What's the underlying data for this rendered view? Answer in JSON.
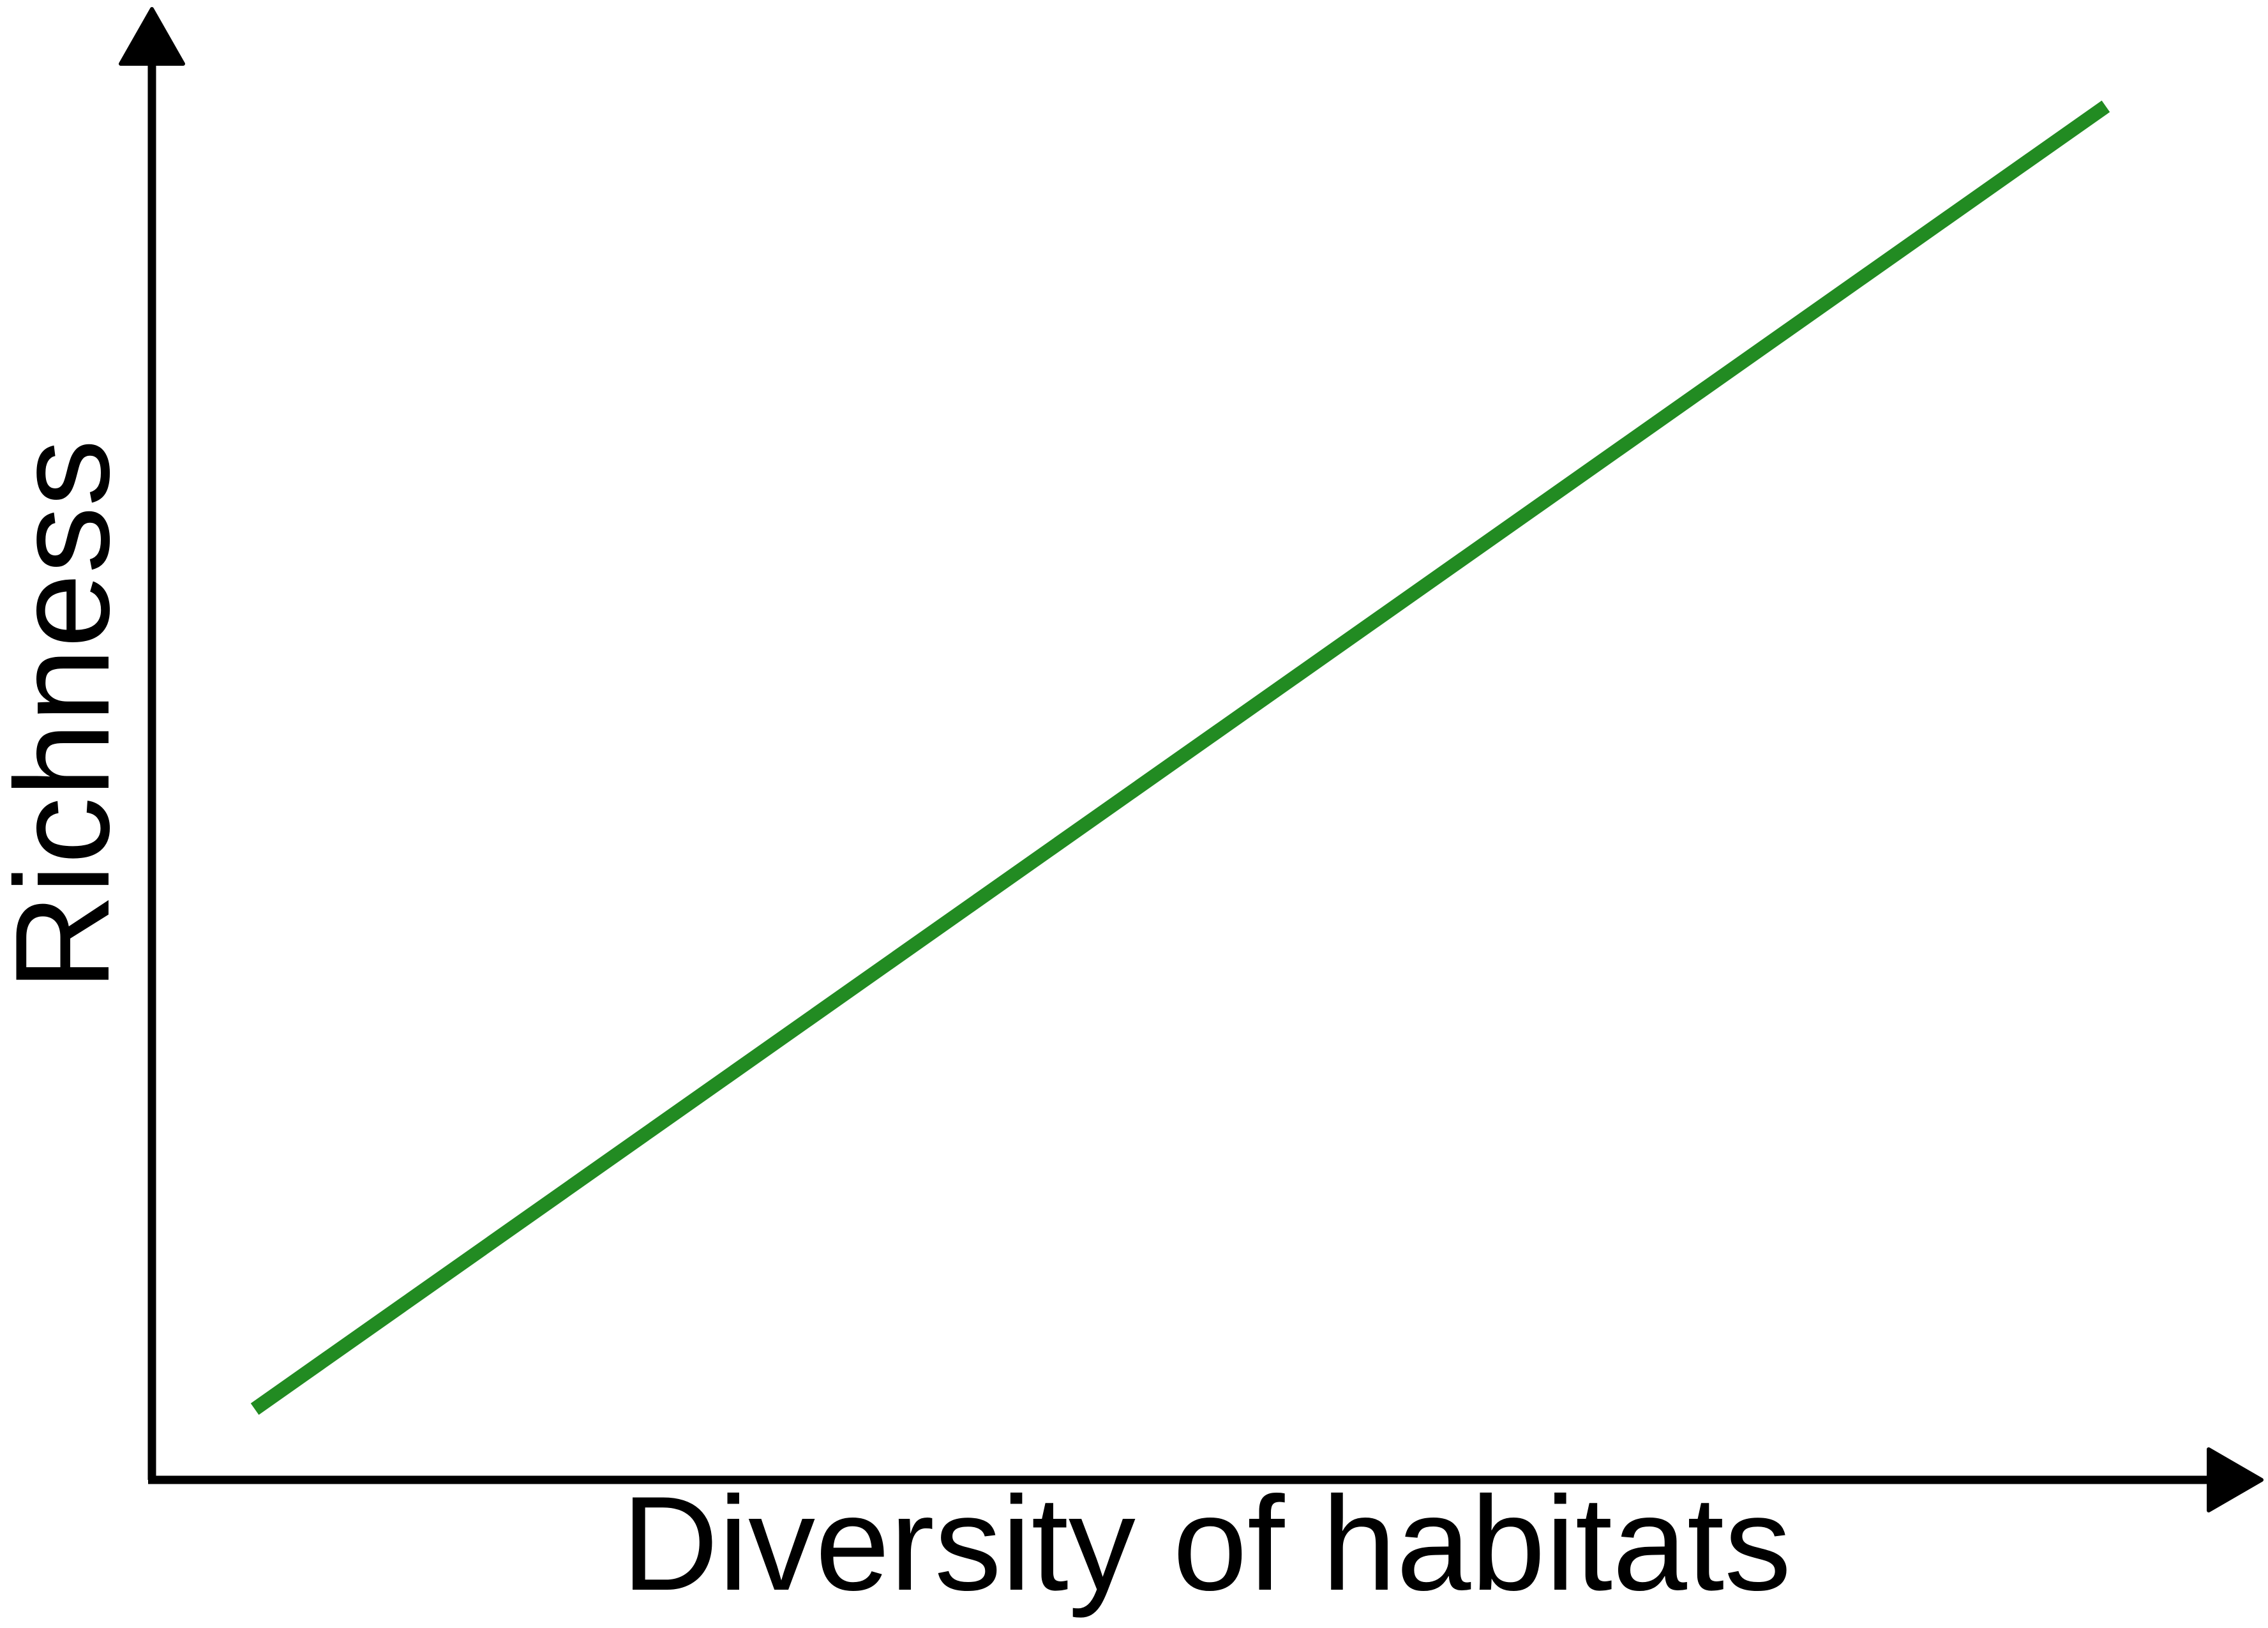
{
  "chart_data": {
    "type": "line",
    "title": "",
    "xlabel": "Diversity of habitats",
    "ylabel": "Richness",
    "grid": false,
    "legend": "none",
    "xlim": [
      0,
      100
    ],
    "ylim": [
      0,
      100
    ],
    "series": [
      {
        "color": "#228b22",
        "x": [
          5,
          95
        ],
        "y": [
          5,
          97
        ]
      }
    ]
  },
  "colors": {
    "axis": "#000000",
    "line": "#228b22"
  }
}
